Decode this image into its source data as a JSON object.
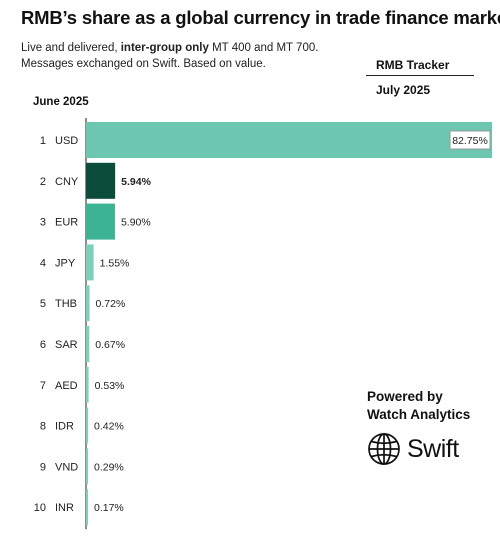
{
  "header": {
    "title": "RMB’s share as a global currency in trade finance market",
    "subtitle_prefix": "Live and delivered, ",
    "subtitle_bold": "inter-group only",
    "subtitle_suffix": " MT 400 and MT 700.",
    "subtitle_line2": "Messages exchanged on Swift. Based on value."
  },
  "tracker": {
    "label": "RMB Tracker",
    "date": "July 2025"
  },
  "period_label": "June 2025",
  "branding": {
    "powered_by": "Powered by",
    "company": "Watch Analytics",
    "logo_text": "Swift",
    "logo_icon": "globe-icon"
  },
  "colors": {
    "usd": "#6cc7b0",
    "cny": "#0b4d3a",
    "eur": "#3cb493",
    "others": "#7fcfba",
    "axis": "#1f1f1f",
    "label_box_border": "#9a9a9a"
  },
  "chart_data": {
    "type": "bar",
    "orientation": "horizontal",
    "ranks": [
      "1",
      "2",
      "3",
      "4",
      "5",
      "6",
      "7",
      "8",
      "9",
      "10"
    ],
    "categories": [
      "USD",
      "CNY",
      "EUR",
      "JPY",
      "THB",
      "SAR",
      "AED",
      "IDR",
      "VND",
      "INR"
    ],
    "values": [
      82.75,
      5.94,
      5.9,
      1.55,
      0.72,
      0.67,
      0.53,
      0.42,
      0.29,
      0.17
    ],
    "value_labels": [
      "82.75%",
      "5.94%",
      "5.90%",
      "1.55%",
      "0.72%",
      "0.67%",
      "0.53%",
      "0.42%",
      "0.29%",
      "0.17%"
    ],
    "highlight": "CNY",
    "title": "",
    "xlabel": "",
    "ylabel": "",
    "grid": false
  }
}
